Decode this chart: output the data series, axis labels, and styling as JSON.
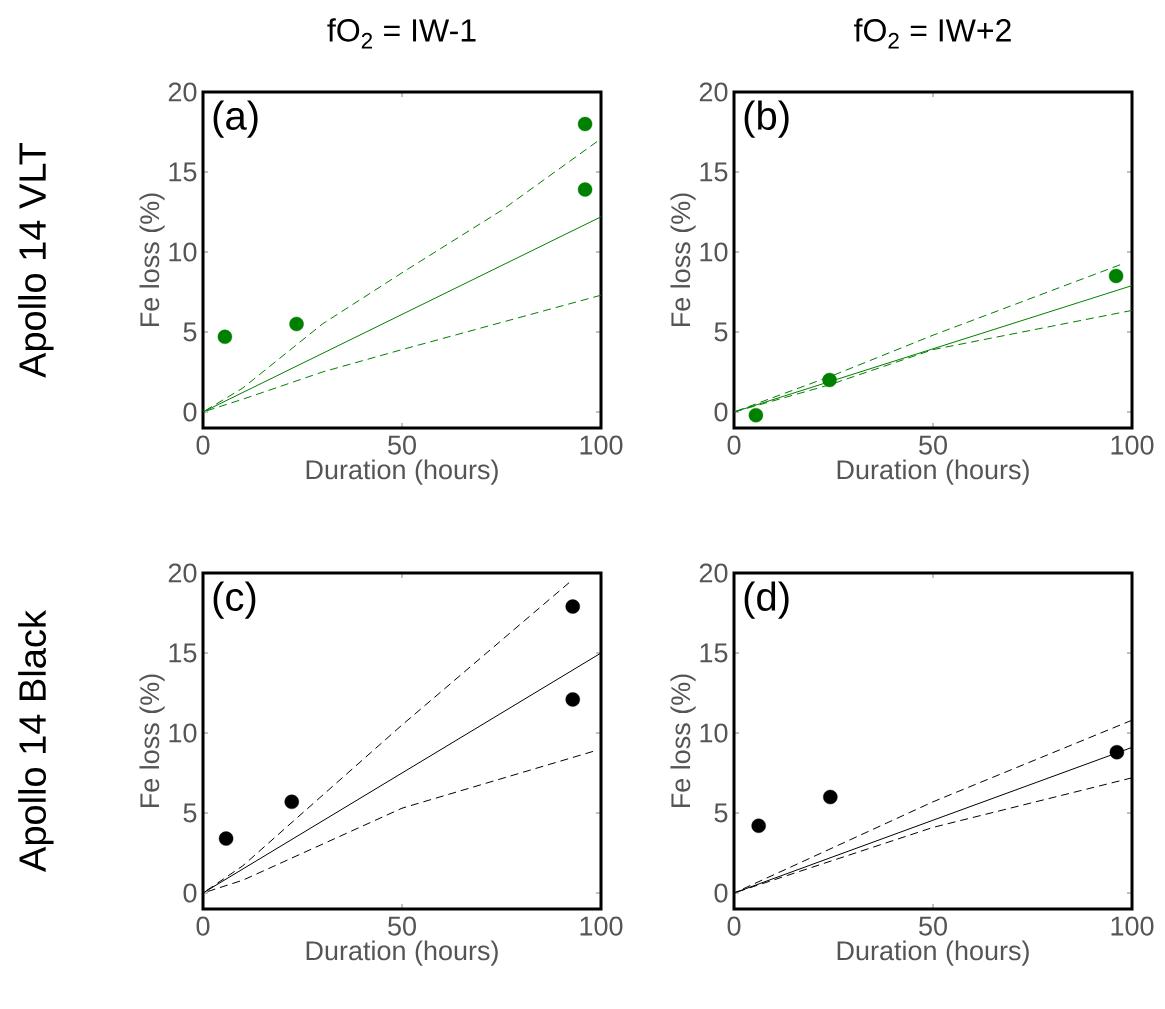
{
  "chart_data": [
    {
      "type": "scatter",
      "title": "fO$_{2}$ = IW-1",
      "xlabel": "Duration (hours)",
      "ylabel": "Fe loss (%)",
      "annotations": [
        "(a)",
        "Apollo 14 VLT"
      ],
      "xlim": [
        0,
        100
      ],
      "ylim": [
        -1,
        20
      ],
      "xticks": [
        0,
        50,
        100
      ],
      "yticks": [
        0,
        5,
        10,
        15,
        20
      ],
      "series": [
        {
          "color": "#008000",
          "x": [
            5.5,
            23.5,
            96
          ],
          "values": [
            4.7,
            5.5,
            13.9
          ]
        },
        {
          "color": "#008000",
          "x": [
            96
          ],
          "values": [
            18
          ]
        },
        {
          "type": "line",
          "line_style": "solid",
          "color": "#008000",
          "x": [
            0,
            100
          ],
          "values": [
            0,
            12.2
          ]
        },
        {
          "type": "line",
          "line_style": "dashed",
          "color": "#008000",
          "x": [
            0,
            10,
            30,
            50,
            75,
            99
          ],
          "values": [
            0,
            1.5,
            5.5,
            8.7,
            12.6,
            16.9
          ]
        },
        {
          "type": "line",
          "line_style": "dashed",
          "color": "#008000",
          "x": [
            0,
            10,
            30,
            50,
            75,
            100
          ],
          "values": [
            0,
            0.8,
            2.5,
            3.9,
            5.6,
            7.3
          ]
        }
      ]
    },
    {
      "type": "scatter",
      "title": "fO$_{2}$ = IW+2",
      "xlabel": "Duration (hours)",
      "ylabel": "Fe loss (%)",
      "annotations": [
        "(b)"
      ],
      "xlim": [
        0,
        100
      ],
      "ylim": [
        -1,
        20
      ],
      "xticks": [
        0,
        50,
        100
      ],
      "yticks": [
        0,
        5,
        10,
        15,
        20
      ],
      "series": [
        {
          "color": "#008000",
          "x": [
            5.5,
            24,
            96
          ],
          "values": [
            -0.2,
            2.0,
            8.5
          ]
        },
        {
          "type": "line",
          "line_style": "solid",
          "color": "#008000",
          "x": [
            0,
            100
          ],
          "values": [
            0,
            7.9
          ]
        },
        {
          "type": "line",
          "line_style": "dashed",
          "color": "#008000",
          "x": [
            0,
            25,
            50,
            97
          ],
          "values": [
            0,
            2.3,
            4.8,
            9.2
          ]
        },
        {
          "type": "line",
          "line_style": "dashed",
          "color": "#008000",
          "x": [
            0,
            24,
            50,
            100
          ],
          "values": [
            0,
            1.7,
            3.9,
            6.35
          ]
        }
      ]
    },
    {
      "type": "scatter",
      "xlabel": "Duration (hours)",
      "ylabel": "Fe loss (%)",
      "annotations": [
        "(c)",
        "Apollo 14 Black"
      ],
      "xlim": [
        0,
        100
      ],
      "ylim": [
        -1,
        20
      ],
      "xticks": [
        0,
        50,
        100
      ],
      "yticks": [
        0,
        5,
        10,
        15,
        20
      ],
      "series": [
        {
          "color": "#000000",
          "x": [
            5.8,
            22.3,
            92.9
          ],
          "values": [
            3.4,
            5.7,
            12.1
          ]
        },
        {
          "color": "#000000",
          "x": [
            92.9
          ],
          "values": [
            17.9
          ]
        },
        {
          "type": "line",
          "line_style": "solid",
          "color": "#000000",
          "x": [
            0,
            100
          ],
          "values": [
            0,
            15.0
          ]
        },
        {
          "type": "line",
          "line_style": "dashed",
          "color": "#000000",
          "x": [
            0,
            10,
            50,
            92
          ],
          "values": [
            0,
            1.7,
            10.5,
            19.4
          ]
        },
        {
          "type": "line",
          "line_style": "dashed",
          "color": "#000000",
          "x": [
            0,
            10,
            50,
            98
          ],
          "values": [
            0,
            0.8,
            5.3,
            8.85
          ]
        }
      ]
    },
    {
      "type": "scatter",
      "xlabel": "Duration (hours)",
      "ylabel": "Fe loss (%)",
      "annotations": [
        "(d)"
      ],
      "xlim": [
        0,
        100
      ],
      "ylim": [
        -1,
        20
      ],
      "xticks": [
        0,
        50,
        100
      ],
      "yticks": [
        0,
        5,
        10,
        15,
        20
      ],
      "series": [
        {
          "color": "#000000",
          "x": [
            6.2,
            24.2,
            96.2
          ],
          "values": [
            4.2,
            6.0,
            8.8
          ]
        },
        {
          "type": "line",
          "line_style": "solid",
          "color": "#000000",
          "x": [
            0,
            100
          ],
          "values": [
            0,
            9.1
          ]
        },
        {
          "type": "line",
          "line_style": "dashed",
          "color": "#000000",
          "x": [
            0,
            50,
            100
          ],
          "values": [
            0,
            5.7,
            10.8
          ]
        },
        {
          "type": "line",
          "line_style": "dashed",
          "color": "#000000",
          "x": [
            0,
            50,
            100
          ],
          "values": [
            0,
            4.1,
            7.2
          ]
        }
      ]
    }
  ]
}
